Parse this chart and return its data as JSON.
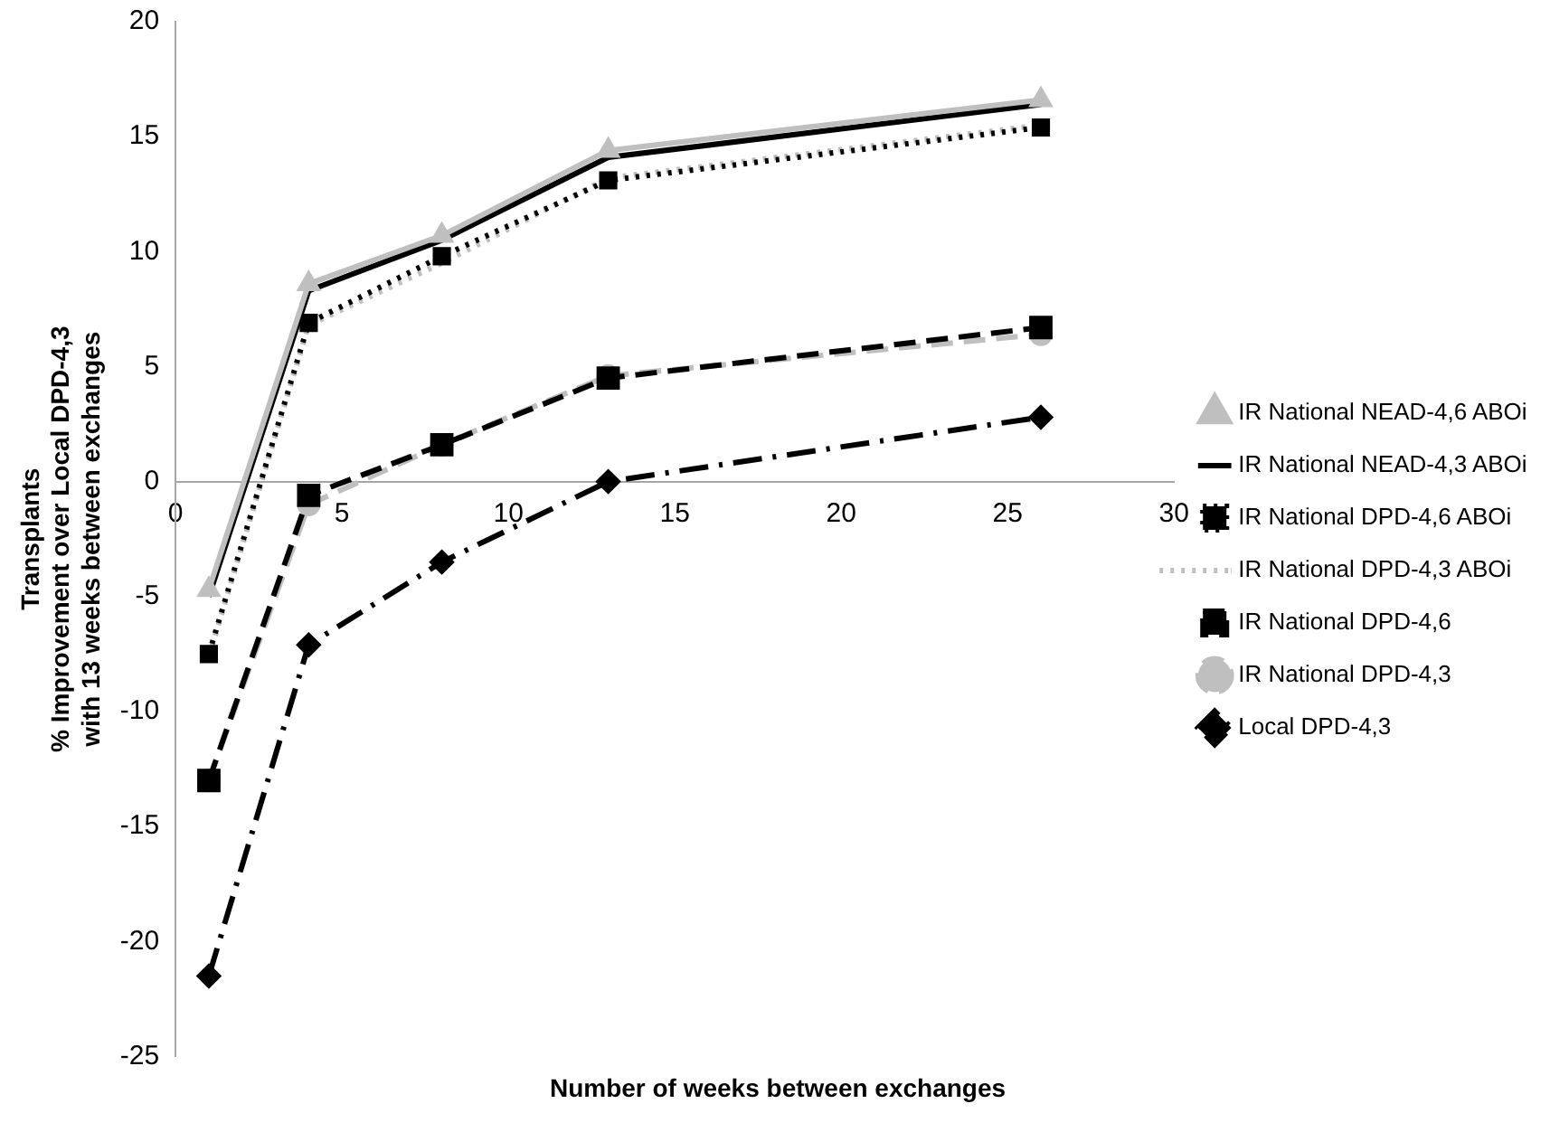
{
  "chart_data": {
    "type": "line",
    "xlabel": "Number of weeks between exchanges",
    "ylabel": "Transplants\n% Improvement over Local DPD-4,3\nwith 13 weeks between exchanges",
    "x": [
      1,
      4,
      8,
      13,
      26
    ],
    "series": [
      {
        "name": "IR National NEAD-4,6 ABOi",
        "color": "#bfbfbf",
        "marker": "triangle",
        "line_style": "solid",
        "values": [
          -4.7,
          8.6,
          10.7,
          14.4,
          16.6
        ]
      },
      {
        "name": "IR National NEAD-4,3 ABOi",
        "color": "#000000",
        "marker": "none",
        "line_style": "solid",
        "values": [
          -5,
          8.3,
          10.5,
          14.1,
          16.4
        ]
      },
      {
        "name": "IR National DPD-4,6 ABOi",
        "color": "#000000",
        "marker": "square",
        "line_style": "dotted",
        "values": [
          -7.5,
          6.9,
          9.8,
          13.1,
          15.4
        ]
      },
      {
        "name": "IR National DPD-4,3 ABOi",
        "color": "#bfbfbf",
        "marker": "none",
        "line_style": "dotted",
        "values": [
          -7.6,
          6.8,
          9.5,
          13.2,
          15.5
        ]
      },
      {
        "name": "IR National DPD-4,6",
        "color": "#000000",
        "marker": "square",
        "line_style": "dashed",
        "values": [
          -13,
          -0.6,
          1.6,
          4.5,
          6.7
        ]
      },
      {
        "name": "IR National DPD-4,3",
        "color": "#bfbfbf",
        "marker": "circle",
        "line_style": "dashed",
        "values": [
          -13,
          -1,
          1.6,
          4.6,
          6.4
        ]
      },
      {
        "name": "Local DPD-4,3",
        "color": "#000000",
        "marker": "diamond",
        "line_style": "dashdot",
        "values": [
          -21.5,
          -7.1,
          -3.5,
          0,
          2.8
        ]
      }
    ],
    "xlim": [
      0,
      30
    ],
    "xticks": [
      0,
      5,
      10,
      15,
      20,
      25,
      30
    ],
    "ylim": [
      -25,
      20
    ],
    "yticks": [
      -25,
      -20,
      -15,
      -10,
      -5,
      0,
      5,
      10,
      15,
      20
    ],
    "grid": false,
    "legend": "right"
  }
}
